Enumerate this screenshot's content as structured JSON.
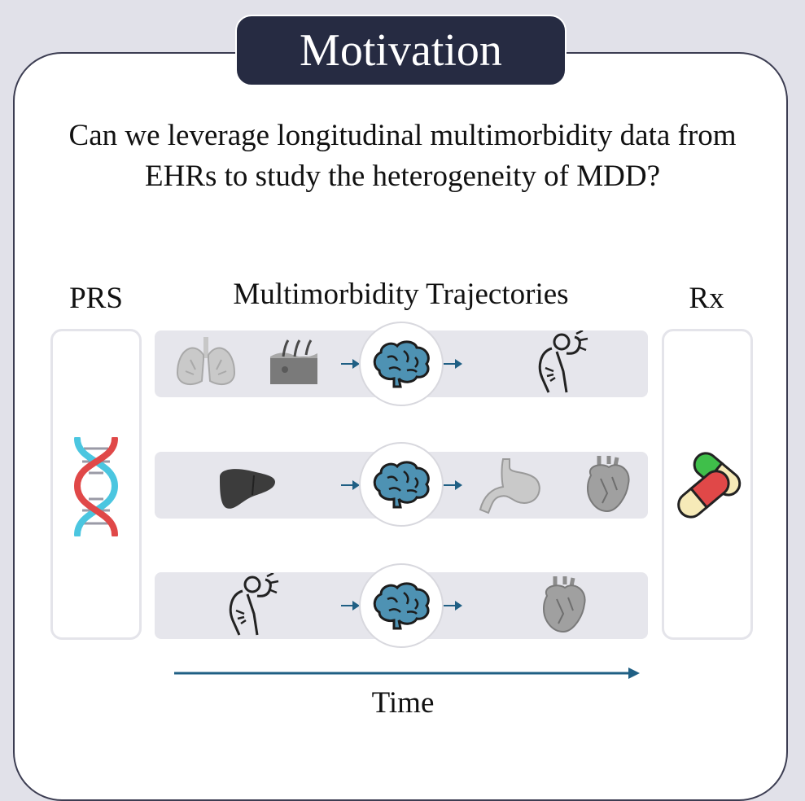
{
  "title": "Motivation",
  "question": "Can we leverage longitudinal multimorbidity data from EHRs to study the heterogeneity of MDD?",
  "columns": {
    "left": "PRS",
    "middle": "Multimorbidity Trajectories",
    "right": "Rx"
  },
  "time_label": "Time",
  "trajectories": [
    [
      "lungs-icon",
      "skin-icon",
      "brain-icon",
      "back-pain-icon"
    ],
    [
      "liver-icon",
      "brain-icon",
      "stomach-icon",
      "heart-icon"
    ],
    [
      "back-pain-icon",
      "brain-icon",
      "heart-icon"
    ]
  ],
  "colors": {
    "background": "#e1e1e9",
    "title_fill": "#262b42",
    "arrow": "#1f5f84",
    "brain": "#4e92b3",
    "dna_red": "#e04848",
    "dna_blue": "#4bc6e0",
    "pill_green": "#3fbf4a",
    "pill_red": "#e04848",
    "pill_cream": "#f6eab8"
  }
}
